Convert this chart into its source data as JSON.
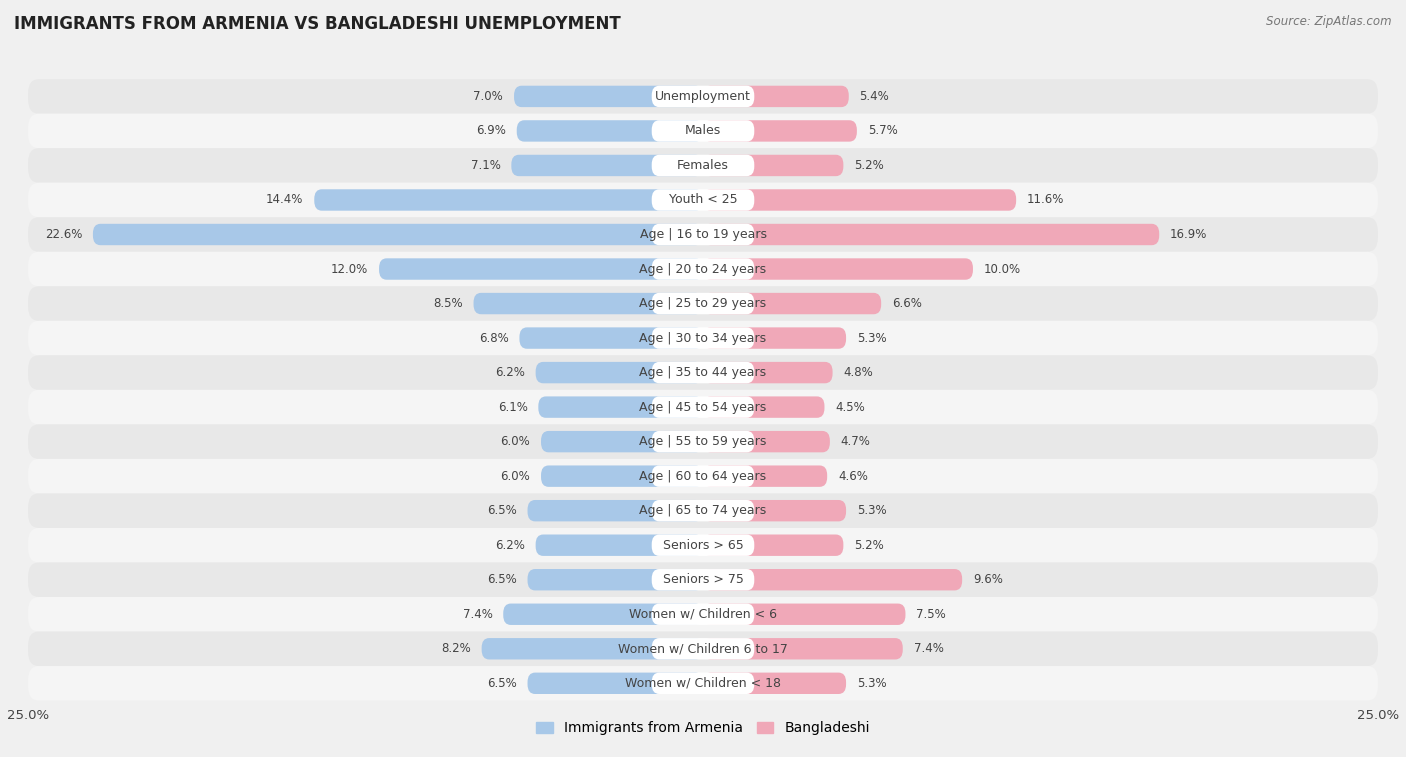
{
  "title": "IMMIGRANTS FROM ARMENIA VS BANGLADESHI UNEMPLOYMENT",
  "source": "Source: ZipAtlas.com",
  "categories": [
    "Unemployment",
    "Males",
    "Females",
    "Youth < 25",
    "Age | 16 to 19 years",
    "Age | 20 to 24 years",
    "Age | 25 to 29 years",
    "Age | 30 to 34 years",
    "Age | 35 to 44 years",
    "Age | 45 to 54 years",
    "Age | 55 to 59 years",
    "Age | 60 to 64 years",
    "Age | 65 to 74 years",
    "Seniors > 65",
    "Seniors > 75",
    "Women w/ Children < 6",
    "Women w/ Children 6 to 17",
    "Women w/ Children < 18"
  ],
  "armenia_values": [
    7.0,
    6.9,
    7.1,
    14.4,
    22.6,
    12.0,
    8.5,
    6.8,
    6.2,
    6.1,
    6.0,
    6.0,
    6.5,
    6.2,
    6.5,
    7.4,
    8.2,
    6.5
  ],
  "bangladeshi_values": [
    5.4,
    5.7,
    5.2,
    11.6,
    16.9,
    10.0,
    6.6,
    5.3,
    4.8,
    4.5,
    4.7,
    4.6,
    5.3,
    5.2,
    9.6,
    7.5,
    7.4,
    5.3
  ],
  "armenia_color": "#a8c8e8",
  "bangladeshi_color": "#f0a8b8",
  "axis_limit": 25.0,
  "bg_color": "#f0f0f0",
  "row_bg_even": "#e8e8e8",
  "row_bg_odd": "#f5f5f5",
  "label_fontsize": 9.0,
  "title_fontsize": 12,
  "value_fontsize": 8.5,
  "legend_labels": [
    "Immigrants from Armenia",
    "Bangladeshi"
  ]
}
